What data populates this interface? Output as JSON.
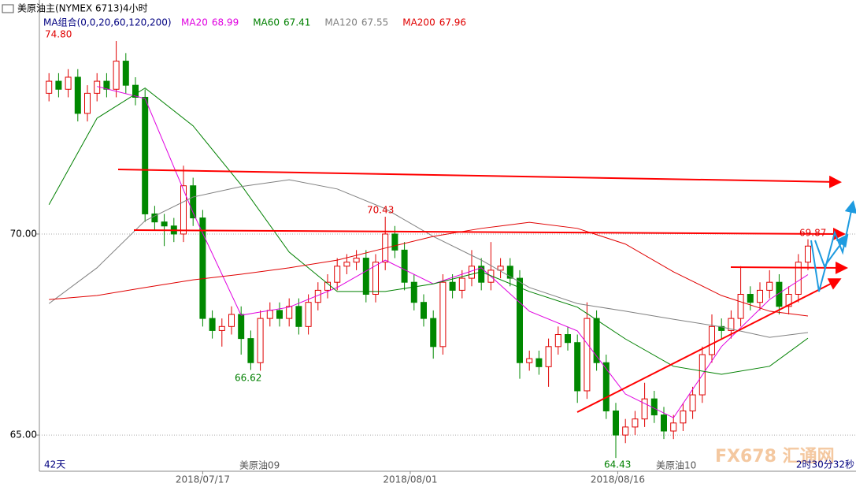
{
  "chart_data": {
    "type": "candlestick",
    "title": "美原油主(NYMEX 6713)",
    "period": "4小时",
    "indicator": "MA组合(0,0,20,60,120,200)",
    "up_color": "#e00000",
    "down_color": "#008800",
    "ylim": [
      64.1,
      75.82
    ],
    "yticks": [
      {
        "value": 65,
        "label": "65.00"
      },
      {
        "value": 70,
        "label": "70.00"
      }
    ],
    "xlim": [
      -1,
      84
    ],
    "xticks": [
      {
        "value": 16,
        "label": "2018/07/17"
      },
      {
        "value": 37.6,
        "label": "2018/08/01"
      },
      {
        "value": 59.2,
        "label": "2018/08/16"
      }
    ],
    "grid": true,
    "open": [
      73.5,
      73.8,
      73.6,
      73.9,
      73.0,
      73.5,
      73.8,
      73.6,
      74.3,
      73.7,
      73.4,
      70.5,
      70.3,
      70.2,
      70.0,
      71.2,
      70.4,
      67.9,
      67.6,
      67.7,
      68.0,
      67.4,
      66.8,
      67.9,
      68.1,
      67.9,
      68.2,
      67.7,
      68.3,
      68.6,
      68.8,
      69.2,
      69.3,
      69.4,
      68.5,
      69.3,
      70.0,
      69.6,
      68.8,
      68.3,
      67.9,
      67.2,
      68.8,
      68.6,
      68.9,
      69.2,
      68.8,
      69.1,
      69.2,
      68.9,
      66.8,
      66.9,
      66.7,
      67.2,
      67.5,
      67.3,
      66.1,
      67.9,
      66.8,
      65.6,
      65.0,
      65.2,
      65.4,
      65.9,
      65.5,
      65.1,
      65.3,
      65.6,
      66.0,
      67.0,
      67.7,
      67.6,
      67.9,
      68.5,
      68.3,
      68.6,
      68.8,
      68.2,
      68.5,
      69.3
    ],
    "high": [
      74.0,
      74.0,
      74.1,
      74.1,
      73.7,
      74.0,
      74.0,
      74.8,
      74.5,
      73.9,
      73.6,
      70.7,
      70.5,
      70.4,
      71.7,
      71.4,
      70.6,
      68.1,
      67.9,
      68.2,
      68.2,
      67.6,
      68.1,
      68.3,
      68.3,
      68.4,
      68.4,
      68.5,
      68.8,
      69.0,
      69.4,
      69.5,
      69.6,
      69.6,
      69.5,
      70.43,
      70.2,
      69.8,
      69.0,
      68.5,
      68.1,
      69.0,
      69.0,
      69.1,
      69.6,
      69.4,
      69.8,
      69.4,
      69.4,
      69.1,
      67.1,
      67.1,
      67.4,
      67.7,
      67.7,
      67.5,
      68.3,
      68.1,
      67.0,
      65.8,
      65.4,
      65.6,
      66.3,
      66.1,
      65.7,
      65.5,
      65.8,
      66.2,
      67.2,
      68.0,
      67.9,
      68.1,
      69.2,
      68.7,
      68.8,
      69.1,
      69.0,
      68.7,
      69.5,
      69.87
    ],
    "low": [
      73.3,
      73.4,
      73.4,
      72.8,
      72.8,
      73.3,
      73.4,
      73.4,
      73.5,
      73.2,
      70.3,
      70.1,
      69.7,
      69.8,
      69.8,
      70.2,
      67.7,
      67.4,
      67.2,
      67.5,
      67.0,
      66.62,
      66.6,
      67.7,
      67.7,
      67.7,
      67.5,
      67.5,
      68.1,
      68.4,
      68.6,
      69.0,
      69.1,
      68.3,
      68.3,
      69.1,
      69.4,
      68.6,
      68.1,
      67.7,
      66.9,
      67.0,
      68.4,
      68.4,
      68.7,
      68.6,
      68.6,
      68.9,
      68.7,
      66.4,
      66.6,
      66.5,
      66.2,
      67.0,
      67.1,
      65.8,
      65.9,
      66.6,
      65.4,
      64.43,
      64.8,
      65.0,
      65.2,
      65.3,
      64.9,
      64.9,
      65.1,
      65.4,
      65.8,
      66.8,
      67.4,
      67.4,
      67.7,
      68.1,
      68.1,
      68.4,
      68.0,
      68.0,
      68.3,
      69.1
    ],
    "close": [
      73.8,
      73.6,
      73.9,
      73.0,
      73.5,
      73.8,
      73.6,
      74.3,
      73.7,
      73.4,
      70.5,
      70.3,
      70.2,
      70.0,
      71.2,
      70.4,
      67.9,
      67.6,
      67.7,
      68.0,
      67.4,
      66.8,
      67.9,
      68.1,
      67.9,
      68.2,
      67.7,
      68.3,
      68.6,
      68.8,
      69.2,
      69.3,
      69.4,
      68.5,
      69.3,
      70.0,
      69.6,
      68.8,
      68.3,
      67.9,
      67.2,
      68.8,
      68.6,
      68.9,
      69.2,
      68.8,
      69.1,
      69.2,
      68.9,
      66.8,
      66.9,
      66.7,
      67.2,
      67.5,
      67.3,
      66.1,
      67.9,
      66.8,
      65.6,
      65.0,
      65.2,
      65.4,
      65.9,
      65.5,
      65.1,
      65.3,
      65.6,
      66.0,
      67.0,
      67.7,
      67.6,
      67.9,
      68.5,
      68.3,
      68.6,
      68.8,
      68.2,
      68.5,
      69.3,
      69.7
    ],
    "ma_x": [
      0,
      5,
      10,
      15,
      20,
      25,
      30,
      35,
      40,
      45,
      50,
      55,
      60,
      65,
      70,
      75,
      79
    ],
    "series": [
      {
        "name": "MA20",
        "color": "#e000e0",
        "values": [
          null,
          73.67,
          73.37,
          70.53,
          67.98,
          68.18,
          68.67,
          69.35,
          68.76,
          69.16,
          68.08,
          67.59,
          66.02,
          65.43,
          67.2,
          68.37,
          68.99
        ]
      },
      {
        "name": "MA60",
        "color": "#008000",
        "values": [
          70.73,
          72.88,
          73.63,
          72.69,
          71.22,
          69.55,
          68.57,
          68.57,
          68.76,
          69.06,
          68.57,
          68.18,
          67.39,
          66.71,
          66.51,
          66.71,
          67.41
        ]
      },
      {
        "name": "MA120",
        "color": "#808080",
        "values": [
          68.27,
          69.16,
          70.33,
          70.92,
          71.18,
          71.35,
          71.12,
          70.63,
          69.94,
          69.35,
          68.67,
          68.27,
          68.08,
          67.88,
          67.69,
          67.43,
          67.55
        ]
      },
      {
        "name": "MA200",
        "color": "#e00000",
        "values": [
          68.37,
          68.47,
          68.67,
          68.86,
          69.0,
          69.16,
          69.35,
          69.65,
          69.94,
          70.14,
          70.29,
          70.14,
          69.75,
          69.06,
          68.47,
          68.08,
          67.96
        ]
      }
    ],
    "annotations": [
      {
        "value": 74.8,
        "label": "74.80"
      },
      {
        "value": 70.43,
        "label": "70.43"
      },
      {
        "value": 66.62,
        "label": "66.62"
      },
      {
        "value": 64.43,
        "label": "64.43"
      },
      {
        "value": 69.87,
        "label": "69.87"
      }
    ],
    "footer": {
      "span": "42天",
      "contract_1": "美原油09",
      "contract_2": "美原油10",
      "countdown": "2时30分32秒",
      "watermark": "FX678 汇通网"
    }
  }
}
